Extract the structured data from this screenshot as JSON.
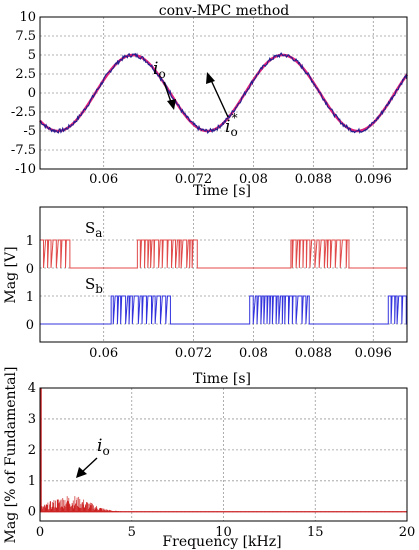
{
  "chart_data": [
    {
      "type": "line",
      "title": "conv-MPC method",
      "xlabel": "Time [s]",
      "ylabel": "",
      "xlim": [
        0.0515,
        0.1005
      ],
      "ylim": [
        -10,
        10
      ],
      "xticks": [
        "0.06",
        "0.072",
        "0.08",
        "0.088",
        "0.096"
      ],
      "yticks": [
        "10",
        "7.5",
        "5",
        "2.5",
        "0",
        "-2.5",
        "-5",
        "-7.5",
        "-10"
      ],
      "grid": true,
      "series": [
        {
          "id": "io",
          "color": "#1f1f8f",
          "amplitude": 5,
          "frequency_hz": 50,
          "phase_deg": 20
        },
        {
          "id": "io_ref",
          "color": "#e0207a",
          "amplitude": 5,
          "frequency_hz": 50,
          "phase_deg": 20
        }
      ],
      "annotations": [
        {
          "symbol": "i",
          "subscript": "o",
          "superscript": ""
        },
        {
          "symbol": "i",
          "subscript": "o",
          "superscript": "*"
        }
      ]
    },
    {
      "type": "line",
      "title": "",
      "xlabel": "Time [s]",
      "ylabel": "Mag [V]",
      "xlim": [
        0.0515,
        0.1005
      ],
      "ylim": [
        -0.3,
        1.75
      ],
      "xticks": [
        "0.06",
        "0.072",
        "0.08",
        "0.088",
        "0.096"
      ],
      "grid": true,
      "series": [
        {
          "id": "Sa",
          "color": "#e04a4a",
          "offset": 1,
          "bursts": [
            [
              0.0515,
              0.0555
            ],
            [
              0.0645,
              0.0725
            ],
            [
              0.085,
              0.093
            ]
          ]
        },
        {
          "id": "Sb",
          "color": "#3333dd",
          "offset": 0,
          "bursts": [
            [
              0.061,
              0.069
            ],
            [
              0.0795,
              0.0875
            ],
            [
              0.098,
              0.1005
            ]
          ]
        }
      ],
      "labels": [
        {
          "symbol": "S",
          "subscript": "a"
        },
        {
          "symbol": "S",
          "subscript": "b"
        }
      ]
    },
    {
      "type": "bar",
      "title": "",
      "xlabel": "Frequency [kHz]",
      "ylabel": "Mag [% of Fundamental]",
      "xlim": [
        0,
        20
      ],
      "ylim": [
        -0.3,
        4
      ],
      "xticks": [
        "0",
        "5",
        "10",
        "15",
        "20"
      ],
      "yticks": [
        "0",
        "1",
        "2",
        "3",
        "4"
      ],
      "grid": true,
      "series": [
        {
          "id": "io_spectrum",
          "color": "#cc2222",
          "fundamental": 4.0,
          "harmonic_envelope_peak": 0.55,
          "harmonic_range_khz": [
            0.1,
            4.5
          ]
        }
      ],
      "annotations": [
        {
          "symbol": "i",
          "subscript": "o"
        }
      ]
    }
  ]
}
